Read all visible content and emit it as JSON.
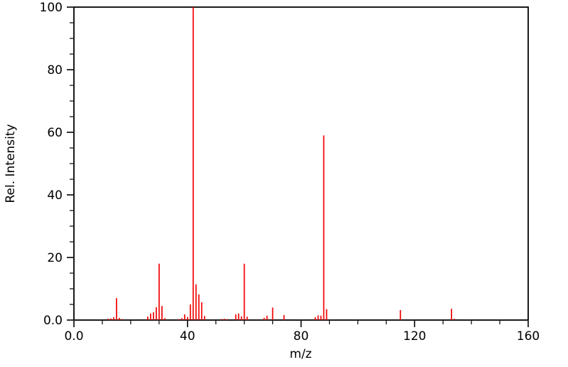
{
  "chart_data": {
    "type": "bar",
    "subtype": "mass-spectrum-stick-plot",
    "title": "",
    "xlabel": "m/z",
    "ylabel": "Rel. Intensity",
    "xlim": [
      0,
      160
    ],
    "ylim": [
      0,
      100
    ],
    "x_major_ticks": [
      0,
      40,
      80,
      120,
      160
    ],
    "x_major_tick_labels": [
      "0.0",
      "40",
      "80",
      "120",
      "160"
    ],
    "x_minor_tick_step": 10,
    "y_major_ticks": [
      0,
      20,
      40,
      60,
      80,
      100
    ],
    "y_major_tick_labels": [
      "0.0",
      "20",
      "40",
      "60",
      "80",
      "100"
    ],
    "y_minor_tick_step": 5,
    "grid": "off",
    "legend": "none",
    "bar_color": "#f00000",
    "axis_color": "#000000",
    "peaks_mz_intensity": [
      [
        12,
        0.4
      ],
      [
        13,
        0.5
      ],
      [
        14,
        0.9
      ],
      [
        15,
        7.0
      ],
      [
        16,
        0.7
      ],
      [
        17,
        0.3
      ],
      [
        26,
        1.1
      ],
      [
        27,
        2.1
      ],
      [
        28,
        2.5
      ],
      [
        29,
        4.1
      ],
      [
        30,
        18.0
      ],
      [
        31,
        4.5
      ],
      [
        32,
        0.6
      ],
      [
        37,
        0.3
      ],
      [
        38,
        0.6
      ],
      [
        39,
        1.8
      ],
      [
        40,
        1.0
      ],
      [
        41,
        5.0
      ],
      [
        42,
        100.0
      ],
      [
        43,
        11.4
      ],
      [
        44,
        8.2
      ],
      [
        45,
        5.7
      ],
      [
        46,
        1.3
      ],
      [
        52,
        0.3
      ],
      [
        53,
        0.4
      ],
      [
        54,
        0.3
      ],
      [
        57,
        1.8
      ],
      [
        58,
        2.1
      ],
      [
        59,
        1.2
      ],
      [
        60,
        18.0
      ],
      [
        61,
        1.1
      ],
      [
        67,
        0.7
      ],
      [
        68,
        1.4
      ],
      [
        70,
        4.0
      ],
      [
        74,
        1.6
      ],
      [
        85,
        0.9
      ],
      [
        86,
        1.5
      ],
      [
        87,
        1.4
      ],
      [
        88,
        59.0
      ],
      [
        89,
        3.5
      ],
      [
        115,
        3.2
      ],
      [
        133,
        3.6
      ],
      [
        134,
        0.4
      ]
    ]
  }
}
